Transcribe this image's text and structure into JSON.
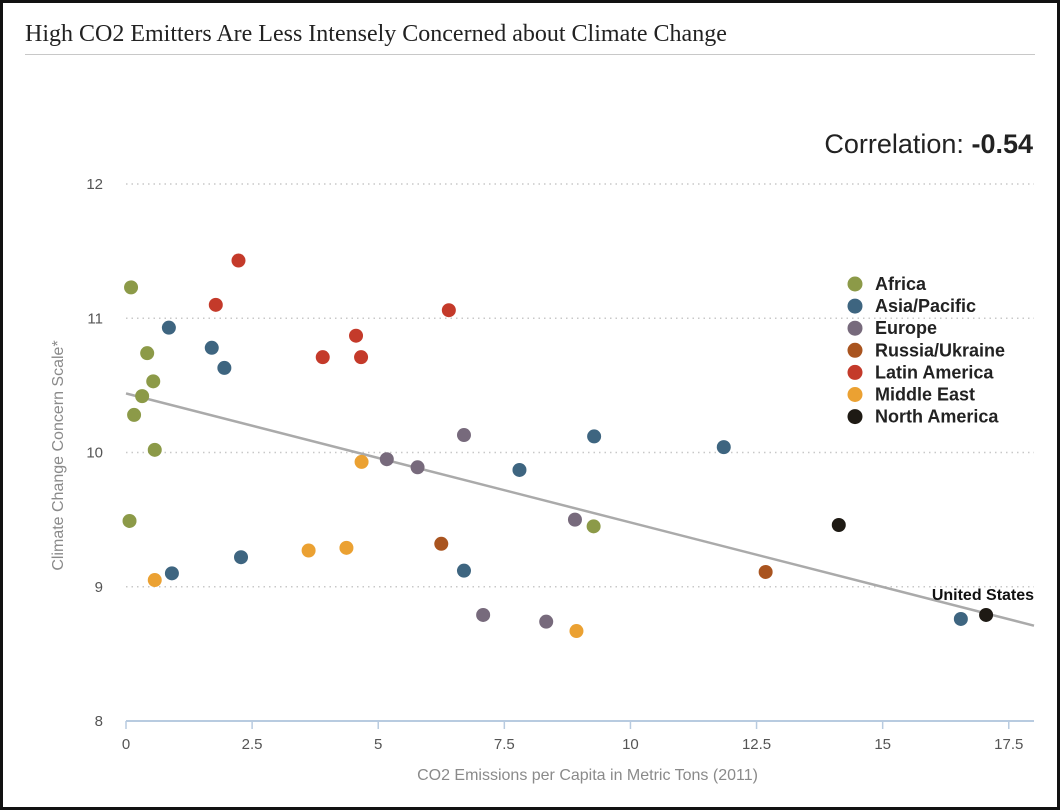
{
  "title": "High CO2 Emitters Are Less Intensely Concerned about Climate Change",
  "correlation": {
    "label": "Correlation:",
    "value": "-0.54"
  },
  "chart_data": {
    "type": "scatter",
    "xlabel": "CO2 Emissions per Capita in Metric Tons (2011)",
    "ylabel": "Climate Change Concern Scale*",
    "xlim": [
      0,
      18
    ],
    "ylim": [
      8,
      12
    ],
    "x_ticks": [
      0,
      2.5,
      5,
      7.5,
      10,
      12.5,
      15,
      17.5
    ],
    "x_tick_labels": [
      "0",
      "2.5",
      "5",
      "7.5",
      "10",
      "12.5",
      "15",
      "17.5"
    ],
    "y_ticks": [
      8,
      9,
      10,
      11,
      12
    ],
    "y_tick_labels": [
      "8",
      "9",
      "10",
      "11",
      "12"
    ],
    "grid": "horizontal dotted",
    "legend_position": "right",
    "trendline": {
      "x": [
        0,
        18
      ],
      "y": [
        10.44,
        8.71
      ],
      "color": "#aaaaaa"
    },
    "series": [
      {
        "name": "Africa",
        "color": "#8c9a48",
        "points": [
          [
            0.1,
            11.23
          ],
          [
            0.42,
            10.74
          ],
          [
            0.54,
            10.53
          ],
          [
            0.32,
            10.42
          ],
          [
            0.16,
            10.28
          ],
          [
            0.57,
            10.02
          ],
          [
            0.07,
            9.49
          ],
          [
            9.27,
            9.45
          ]
        ]
      },
      {
        "name": "Asia/Pacific",
        "color": "#3e6580",
        "points": [
          [
            0.85,
            10.93
          ],
          [
            1.7,
            10.78
          ],
          [
            1.95,
            10.63
          ],
          [
            9.28,
            10.12
          ],
          [
            11.85,
            10.04
          ],
          [
            7.8,
            9.87
          ],
          [
            2.28,
            9.22
          ],
          [
            0.91,
            9.1
          ],
          [
            6.7,
            9.12
          ],
          [
            16.55,
            8.76
          ]
        ]
      },
      {
        "name": "Europe",
        "color": "#776a7c",
        "points": [
          [
            6.7,
            10.13
          ],
          [
            5.17,
            9.95
          ],
          [
            5.78,
            9.89
          ],
          [
            8.9,
            9.5
          ],
          [
            7.08,
            8.79
          ],
          [
            8.33,
            8.74
          ]
        ]
      },
      {
        "name": "Russia/Ukraine",
        "color": "#a9541f",
        "points": [
          [
            6.25,
            9.32
          ],
          [
            12.68,
            9.11
          ]
        ]
      },
      {
        "name": "Latin America",
        "color": "#c43a2a",
        "points": [
          [
            2.23,
            11.43
          ],
          [
            1.78,
            11.1
          ],
          [
            6.4,
            11.06
          ],
          [
            4.56,
            10.87
          ],
          [
            3.9,
            10.71
          ],
          [
            4.66,
            10.71
          ]
        ]
      },
      {
        "name": "Middle East",
        "color": "#eba132",
        "points": [
          [
            4.67,
            9.93
          ],
          [
            4.37,
            9.29
          ],
          [
            3.62,
            9.27
          ],
          [
            0.57,
            9.05
          ],
          [
            8.93,
            8.67
          ]
        ]
      },
      {
        "name": "North America",
        "color": "#1e1a14",
        "points": [
          [
            14.13,
            9.46
          ],
          [
            17.05,
            8.79
          ]
        ]
      }
    ],
    "annotations": [
      {
        "text": "United States",
        "x": 17.05,
        "y": 8.79
      }
    ]
  }
}
